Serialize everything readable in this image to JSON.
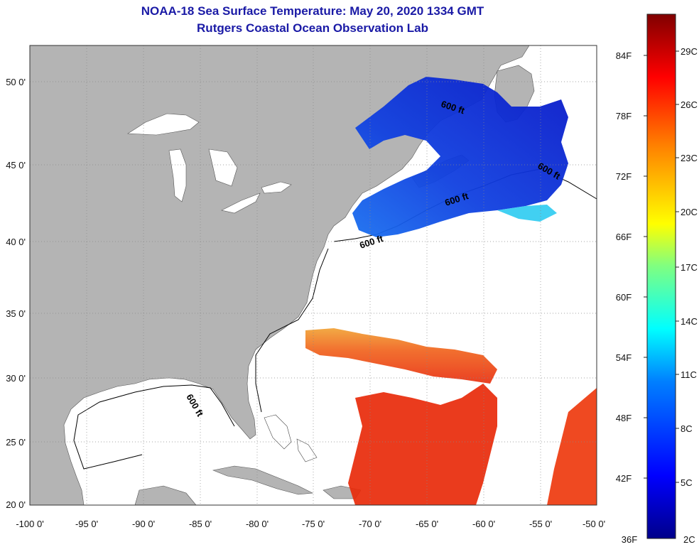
{
  "title": "NOAA-18 Sea Surface Temperature:  May 20, 2020 1334 GMT",
  "subtitle": "Rutgers Coastal Ocean Observation Lab",
  "axes": {
    "lon_ticks": [
      "-100 0'",
      "-95 0'",
      "-90 0'",
      "-85 0'",
      "-80 0'",
      "-75 0'",
      "-70 0'",
      "-65 0'",
      "-60 0'",
      "-55 0'",
      "-50 0'"
    ],
    "lat_ticks": [
      "20 0'",
      "25 0'",
      "30 0'",
      "35 0'",
      "40 0'",
      "45 0'",
      "50 0'"
    ]
  },
  "contour_label": "600 ft",
  "colorbar": {
    "fahrenheit": [
      "84F",
      "78F",
      "72F",
      "66F",
      "60F",
      "54F",
      "48F",
      "42F",
      "36F"
    ],
    "celsius": [
      "29C",
      "26C",
      "23C",
      "20C",
      "17C",
      "14C",
      "11C",
      "8C",
      "5C",
      "2C"
    ]
  },
  "colors": {
    "land": "#b4b4b4",
    "title": "#1a1aa6",
    "cold": "#0a1fd6",
    "warm": "#e8280a"
  }
}
